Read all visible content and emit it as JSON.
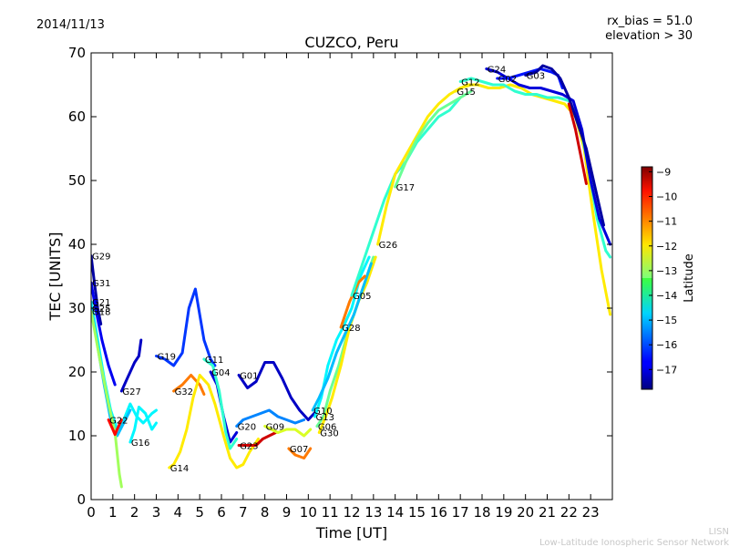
{
  "header": {
    "date": "2014/11/13",
    "rx_bias": "rx_bias = 51.0",
    "elevation": "elevation > 30"
  },
  "footer": {
    "credit_short": "LISN",
    "credit_long": "Low-Latitude Ionospheric Sensor Network"
  },
  "colors": {
    "colormap": "jet",
    "background": "#ffffff",
    "axes": "#000000",
    "credit_text": "#c8c8c8"
  },
  "chart_data": {
    "type": "line",
    "title": "CUZCO, Peru",
    "xlabel": "Time [UT]",
    "ylabel": "TEC [UNITS]",
    "xlim": [
      0,
      24
    ],
    "ylim": [
      0,
      70
    ],
    "xticks": [
      "0",
      "1",
      "2",
      "3",
      "4",
      "5",
      "6",
      "7",
      "8",
      "9",
      "10",
      "11",
      "12",
      "13",
      "14",
      "15",
      "16",
      "17",
      "18",
      "19",
      "20",
      "21",
      "22",
      "23"
    ],
    "yticks": [
      "0",
      "10",
      "20",
      "30",
      "40",
      "50",
      "60",
      "70"
    ],
    "grid": false,
    "colorbar": {
      "label": "Latitude",
      "range": [
        -17.8,
        -8.8
      ],
      "ticks": [
        "-9",
        "-10",
        "-11",
        "-12",
        "-13",
        "-14",
        "-15",
        "-16",
        "-17"
      ]
    },
    "series": [
      {
        "name": "G29",
        "lat": -17.5,
        "points": [
          [
            0.0,
            38.2
          ],
          [
            0.15,
            34
          ],
          [
            0.3,
            30
          ],
          [
            0.45,
            27.5
          ]
        ]
      },
      {
        "name": "G31",
        "lat": -16.8,
        "points": [
          [
            0.0,
            34
          ],
          [
            0.2,
            30
          ],
          [
            0.5,
            25
          ],
          [
            0.8,
            21
          ],
          [
            1.1,
            18
          ]
        ]
      },
      {
        "name": "G21",
        "lat": -14.5,
        "points": [
          [
            0.0,
            31
          ],
          [
            0.3,
            25
          ],
          [
            0.6,
            19
          ],
          [
            0.9,
            14
          ],
          [
            1.2,
            11
          ],
          [
            1.5,
            12.5
          ],
          [
            1.8,
            15
          ],
          [
            2.1,
            13
          ],
          [
            2.4,
            12
          ],
          [
            2.8,
            13.5
          ],
          [
            3.0,
            14
          ]
        ]
      },
      {
        "name": "G25",
        "lat": -15.0,
        "points": [
          [
            0.0,
            30
          ],
          [
            0.3,
            24
          ],
          [
            0.6,
            18
          ],
          [
            0.9,
            12.5
          ],
          [
            1.2,
            10
          ],
          [
            1.5,
            12
          ],
          [
            1.8,
            14
          ]
        ]
      },
      {
        "name": "G18",
        "lat": -13.0,
        "points": [
          [
            0.0,
            29.5
          ],
          [
            0.4,
            22
          ],
          [
            0.8,
            15
          ],
          [
            1.1,
            10.5
          ],
          [
            1.3,
            4
          ],
          [
            1.4,
            2
          ]
        ]
      },
      {
        "name": "G22",
        "lat": -10.0,
        "points": [
          [
            0.8,
            12.5
          ],
          [
            1.0,
            11
          ],
          [
            1.1,
            10.2
          ],
          [
            1.2,
            11
          ],
          [
            1.4,
            12.5
          ]
        ]
      },
      {
        "name": "G16",
        "lat": -14.5,
        "points": [
          [
            1.8,
            9
          ],
          [
            2.0,
            11
          ],
          [
            2.2,
            14.5
          ],
          [
            2.5,
            13.5
          ],
          [
            2.8,
            11
          ],
          [
            3.0,
            12
          ]
        ]
      },
      {
        "name": "G27",
        "lat": -17.2,
        "points": [
          [
            1.4,
            17
          ],
          [
            1.6,
            18.5
          ],
          [
            1.8,
            20
          ],
          [
            2.0,
            21.5
          ],
          [
            2.2,
            22.5
          ],
          [
            2.3,
            25
          ]
        ]
      },
      {
        "name": "G19",
        "lat": -16.2,
        "points": [
          [
            3.0,
            22.5
          ],
          [
            3.4,
            22
          ],
          [
            3.8,
            21
          ],
          [
            4.2,
            23
          ],
          [
            4.5,
            30
          ],
          [
            4.8,
            33
          ],
          [
            5.2,
            25
          ],
          [
            5.5,
            22
          ],
          [
            5.7,
            21
          ]
        ]
      },
      {
        "name": "G32",
        "lat": -11.0,
        "points": [
          [
            3.8,
            17
          ],
          [
            4.2,
            18
          ],
          [
            4.6,
            19.5
          ],
          [
            5.0,
            18
          ],
          [
            5.2,
            16.5
          ]
        ]
      },
      {
        "name": "G14",
        "lat": -12.0,
        "points": [
          [
            3.6,
            5
          ],
          [
            3.8,
            5.5
          ],
          [
            4.1,
            7.5
          ],
          [
            4.4,
            11
          ],
          [
            4.7,
            16
          ],
          [
            5.0,
            19.5
          ],
          [
            5.4,
            18
          ],
          [
            5.7,
            15
          ],
          [
            6.1,
            10
          ],
          [
            6.4,
            6.5
          ],
          [
            6.7,
            5
          ],
          [
            7.0,
            5.5
          ],
          [
            7.3,
            7.5
          ],
          [
            7.7,
            9.5
          ]
        ]
      },
      {
        "name": "G04",
        "lat": -17.0,
        "points": [
          [
            5.5,
            20
          ],
          [
            5.8,
            18
          ],
          [
            6.1,
            13
          ],
          [
            6.4,
            9
          ],
          [
            6.7,
            10.5
          ]
        ]
      },
      {
        "name": "G01",
        "lat": -17.2,
        "points": [
          [
            6.8,
            19.5
          ],
          [
            7.2,
            17.5
          ],
          [
            7.6,
            18.5
          ],
          [
            8.0,
            21.5
          ],
          [
            8.4,
            21.5
          ],
          [
            8.8,
            19
          ],
          [
            9.2,
            16
          ],
          [
            9.6,
            14
          ],
          [
            10.0,
            12.5
          ],
          [
            10.4,
            14
          ]
        ]
      },
      {
        "name": "G11",
        "lat": -14.0,
        "points": [
          [
            5.2,
            22
          ],
          [
            5.6,
            21
          ],
          [
            5.9,
            17
          ],
          [
            6.2,
            10.5
          ],
          [
            6.4,
            8
          ],
          [
            6.7,
            9.5
          ]
        ]
      },
      {
        "name": "G20",
        "lat": -15.5,
        "points": [
          [
            6.7,
            11.5
          ],
          [
            7.0,
            12.5
          ],
          [
            7.4,
            13
          ],
          [
            7.8,
            13.5
          ],
          [
            8.2,
            14
          ],
          [
            8.6,
            13
          ],
          [
            9.0,
            12.5
          ],
          [
            9.4,
            12
          ],
          [
            9.8,
            12.5
          ]
        ]
      },
      {
        "name": "G23",
        "lat": -9.5,
        "points": [
          [
            6.8,
            8.5
          ],
          [
            7.0,
            8.5
          ],
          [
            7.3,
            8.5
          ],
          [
            7.6,
            8.5
          ],
          [
            7.9,
            9.5
          ],
          [
            8.2,
            10
          ],
          [
            8.5,
            10.5
          ]
        ]
      },
      {
        "name": "G09",
        "lat": -12.5,
        "points": [
          [
            8.0,
            11.5
          ],
          [
            8.3,
            11
          ],
          [
            8.6,
            10.5
          ],
          [
            9.0,
            11
          ],
          [
            9.4,
            11
          ],
          [
            9.8,
            10
          ],
          [
            10.1,
            11
          ]
        ]
      },
      {
        "name": "G07",
        "lat": -11.0,
        "points": [
          [
            9.1,
            8
          ],
          [
            9.4,
            7
          ],
          [
            9.8,
            6.5
          ],
          [
            10.1,
            8
          ]
        ]
      },
      {
        "name": "G13",
        "lat": -14.5,
        "points": [
          [
            10.3,
            13
          ],
          [
            10.6,
            16
          ],
          [
            10.9,
            21
          ],
          [
            11.3,
            25
          ],
          [
            11.6,
            27
          ],
          [
            12.0,
            30
          ],
          [
            12.4,
            35
          ],
          [
            12.8,
            38
          ]
        ]
      },
      {
        "name": "G06",
        "lat": -13.5,
        "points": [
          [
            10.4,
            11.5
          ],
          [
            10.7,
            13
          ],
          [
            11.0,
            17
          ],
          [
            11.4,
            21
          ],
          [
            11.8,
            26
          ],
          [
            12.2,
            30
          ],
          [
            12.6,
            34
          ],
          [
            13.0,
            38
          ]
        ]
      },
      {
        "name": "G30",
        "lat": -12.0,
        "points": [
          [
            10.5,
            10.5
          ],
          [
            10.8,
            13
          ],
          [
            11.1,
            16
          ],
          [
            11.5,
            21
          ],
          [
            11.9,
            27
          ],
          [
            12.3,
            31
          ],
          [
            12.7,
            34
          ],
          [
            13.1,
            38
          ]
        ]
      },
      {
        "name": "G10",
        "lat": -15.0,
        "points": [
          [
            10.2,
            14
          ],
          [
            10.5,
            16
          ],
          [
            10.9,
            19
          ],
          [
            11.3,
            23
          ],
          [
            11.7,
            26
          ],
          [
            12.1,
            29
          ],
          [
            12.5,
            33
          ],
          [
            12.9,
            37
          ]
        ]
      },
      {
        "name": "G28",
        "lat": -11.0,
        "points": [
          [
            11.5,
            27
          ],
          [
            11.9,
            31
          ],
          [
            12.3,
            34
          ],
          [
            12.6,
            35
          ]
        ]
      },
      {
        "name": "G05",
        "lat": -14.0,
        "points": [
          [
            12.0,
            32
          ],
          [
            12.5,
            37
          ],
          [
            13.0,
            42
          ],
          [
            13.5,
            47
          ],
          [
            14.0,
            51
          ],
          [
            14.5,
            53
          ],
          [
            15.0,
            56
          ],
          [
            15.5,
            58
          ],
          [
            16.0,
            60
          ],
          [
            16.5,
            61
          ],
          [
            17.0,
            63
          ]
        ]
      },
      {
        "name": "G26",
        "lat": -12.0,
        "points": [
          [
            13.2,
            40
          ],
          [
            13.6,
            46
          ],
          [
            14.0,
            51
          ],
          [
            14.5,
            54
          ],
          [
            15.0,
            57
          ],
          [
            15.5,
            60
          ],
          [
            16.0,
            62
          ],
          [
            16.5,
            63.5
          ],
          [
            17.0,
            64.5
          ],
          [
            17.5,
            65
          ]
        ]
      },
      {
        "name": "G17",
        "lat": -13.5,
        "points": [
          [
            14.0,
            49
          ],
          [
            14.5,
            53
          ],
          [
            15.0,
            56.5
          ],
          [
            15.5,
            59
          ],
          [
            16.0,
            61
          ],
          [
            16.5,
            62
          ],
          [
            17.0,
            63
          ],
          [
            17.5,
            64
          ]
        ]
      },
      {
        "name": "G15",
        "lat": -12.0,
        "points": [
          [
            16.8,
            64
          ],
          [
            17.3,
            65
          ],
          [
            17.8,
            65
          ],
          [
            18.3,
            64.5
          ],
          [
            18.8,
            64.5
          ],
          [
            19.3,
            65
          ],
          [
            19.8,
            64.5
          ],
          [
            20.3,
            63.5
          ],
          [
            20.8,
            63
          ],
          [
            21.3,
            62.5
          ],
          [
            21.8,
            62
          ],
          [
            22.3,
            60
          ],
          [
            22.7,
            55
          ],
          [
            23.1,
            45
          ],
          [
            23.5,
            36
          ],
          [
            23.9,
            29
          ]
        ]
      },
      {
        "name": "G12",
        "lat": -14.0,
        "points": [
          [
            17.0,
            65.5
          ],
          [
            17.5,
            66
          ],
          [
            18.0,
            65.5
          ],
          [
            18.5,
            65
          ],
          [
            19.0,
            65
          ],
          [
            19.5,
            64
          ],
          [
            20.0,
            63.5
          ],
          [
            20.5,
            63.5
          ],
          [
            21.0,
            63
          ],
          [
            21.5,
            63
          ],
          [
            22.0,
            62.5
          ],
          [
            22.5,
            59
          ],
          [
            22.9,
            52
          ],
          [
            23.3,
            44
          ],
          [
            23.7,
            39
          ],
          [
            23.9,
            38
          ]
        ]
      },
      {
        "name": "G24",
        "lat": -17.0,
        "points": [
          [
            18.2,
            67.5
          ],
          [
            18.7,
            67
          ],
          [
            19.2,
            66
          ],
          [
            19.7,
            65
          ],
          [
            20.2,
            64.5
          ],
          [
            20.7,
            64.5
          ],
          [
            21.2,
            64
          ],
          [
            21.7,
            63.5
          ],
          [
            22.2,
            62.5
          ],
          [
            22.6,
            58
          ],
          [
            23.0,
            50
          ],
          [
            23.4,
            44
          ],
          [
            23.9,
            40
          ]
        ]
      },
      {
        "name": "G02",
        "lat": -16.5,
        "points": [
          [
            18.7,
            66
          ],
          [
            19.2,
            66
          ],
          [
            19.7,
            66.5
          ],
          [
            20.2,
            67
          ],
          [
            20.7,
            67.5
          ],
          [
            21.2,
            67
          ],
          [
            21.5,
            66.5
          ],
          [
            21.7,
            64.5
          ]
        ]
      },
      {
        "name": "G03",
        "lat": -17.5,
        "points": [
          [
            20.0,
            66.5
          ],
          [
            20.5,
            67
          ],
          [
            20.8,
            68
          ],
          [
            21.2,
            67.5
          ],
          [
            21.6,
            66
          ],
          [
            22.0,
            63
          ],
          [
            22.4,
            59
          ],
          [
            22.8,
            55
          ],
          [
            23.2,
            49
          ],
          [
            23.6,
            43
          ]
        ]
      },
      {
        "name": "",
        "lat": -9.5,
        "points": [
          [
            22.0,
            62
          ],
          [
            22.3,
            58
          ],
          [
            22.6,
            53
          ],
          [
            22.8,
            49.5
          ]
        ]
      }
    ]
  }
}
